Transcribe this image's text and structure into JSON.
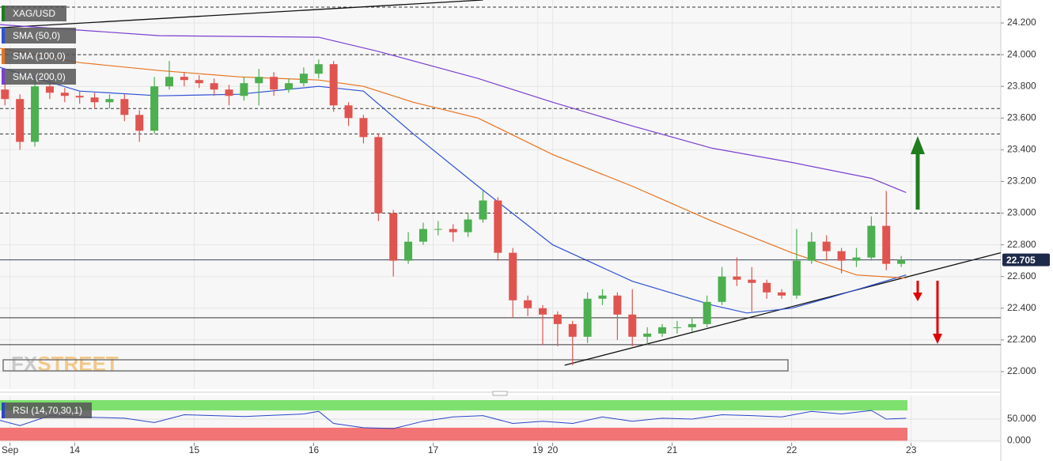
{
  "chart_data": {
    "type": "candlestick",
    "symbol": "XAG/USD",
    "watermark": [
      "FX",
      "STREET"
    ],
    "x": [
      -14,
      -11,
      -8,
      -5,
      -2,
      1,
      4,
      7,
      10,
      13,
      16,
      19,
      22,
      25,
      28,
      31,
      34,
      37,
      40,
      43,
      46,
      49,
      52,
      55,
      58,
      61,
      64,
      67,
      70,
      73,
      76,
      79,
      82,
      85,
      88,
      91,
      94,
      97,
      100,
      103,
      106,
      109,
      112,
      115,
      118,
      121,
      124,
      127,
      130,
      133,
      136,
      139,
      142,
      145,
      148,
      151,
      154,
      157,
      160,
      163,
      166
    ],
    "open": [
      23.78,
      23.72,
      23.45,
      23.8,
      23.76,
      23.74,
      23.73,
      23.7,
      23.72,
      23.62,
      23.52,
      23.8,
      23.86,
      23.84,
      23.82,
      23.78,
      23.74,
      23.82,
      23.86,
      23.78,
      23.82,
      23.88,
      23.94,
      23.68,
      23.6,
      23.48,
      23.0,
      22.7,
      22.82,
      22.9,
      22.9,
      22.88,
      22.96,
      23.08,
      22.75,
      22.45,
      22.4,
      22.36,
      22.3,
      22.22,
      22.46,
      22.48,
      22.36,
      22.22,
      22.24,
      22.28,
      22.28,
      22.3,
      22.44,
      22.6,
      22.58,
      22.56,
      22.5,
      22.48,
      22.7,
      22.82,
      22.76,
      22.7,
      22.72,
      22.92,
      22.68
    ],
    "high": [
      23.82,
      23.75,
      23.84,
      23.84,
      23.79,
      23.77,
      23.76,
      23.75,
      23.75,
      23.65,
      23.86,
      23.96,
      23.89,
      23.87,
      23.85,
      23.81,
      23.86,
      23.91,
      23.89,
      23.85,
      23.92,
      23.97,
      23.96,
      23.7,
      23.62,
      23.5,
      23.02,
      22.88,
      22.94,
      22.95,
      22.93,
      23.0,
      23.14,
      23.1,
      22.78,
      22.48,
      22.42,
      22.38,
      22.32,
      22.5,
      22.52,
      22.5,
      22.52,
      22.28,
      22.3,
      22.32,
      22.34,
      22.48,
      22.66,
      22.72,
      22.66,
      22.58,
      22.52,
      22.9,
      22.88,
      22.86,
      22.78,
      22.78,
      22.98,
      23.14,
      22.73
    ],
    "low": [
      23.68,
      23.4,
      23.42,
      23.72,
      23.7,
      23.69,
      23.66,
      23.66,
      23.58,
      23.45,
      23.5,
      23.78,
      23.8,
      23.79,
      23.74,
      23.68,
      23.71,
      23.68,
      23.74,
      23.76,
      23.8,
      23.85,
      23.64,
      23.55,
      23.44,
      22.95,
      22.6,
      22.68,
      22.8,
      22.86,
      22.82,
      22.85,
      22.94,
      22.7,
      22.34,
      22.35,
      22.17,
      22.16,
      22.04,
      22.18,
      22.42,
      22.2,
      22.16,
      22.17,
      22.22,
      22.24,
      22.25,
      22.28,
      22.42,
      22.54,
      22.38,
      22.46,
      22.46,
      22.46,
      22.68,
      22.7,
      22.62,
      22.66,
      22.7,
      22.64,
      22.66
    ],
    "close": [
      23.72,
      23.45,
      23.8,
      23.76,
      23.74,
      23.73,
      23.7,
      23.72,
      23.62,
      23.52,
      23.8,
      23.86,
      23.84,
      23.82,
      23.78,
      23.74,
      23.82,
      23.86,
      23.78,
      23.82,
      23.88,
      23.94,
      23.68,
      23.6,
      23.48,
      23.0,
      22.7,
      22.82,
      22.9,
      22.9,
      22.88,
      22.96,
      23.08,
      22.75,
      22.45,
      22.4,
      22.36,
      22.3,
      22.22,
      22.46,
      22.48,
      22.36,
      22.22,
      22.24,
      22.28,
      22.28,
      22.3,
      22.44,
      22.6,
      22.58,
      22.56,
      22.5,
      22.48,
      22.7,
      22.82,
      22.76,
      22.7,
      22.72,
      22.92,
      22.68,
      22.705
    ],
    "up_color": "#4caf50",
    "down_color": "#e0544f",
    "xlim": [
      -15,
      186
    ],
    "xticks": [
      {
        "value": -13,
        "label": "Sep"
      },
      {
        "value": 0,
        "label": "14"
      },
      {
        "value": 24,
        "label": "15"
      },
      {
        "value": 48,
        "label": "16"
      },
      {
        "value": 72,
        "label": "17"
      },
      {
        "value": 93,
        "label": "19"
      },
      {
        "value": 96,
        "label": "20"
      },
      {
        "value": 120,
        "label": "21"
      },
      {
        "value": 144,
        "label": "22"
      },
      {
        "value": 168,
        "label": "23"
      }
    ],
    "ylim": [
      21.89,
      24.345
    ],
    "yticks": [
      {
        "value": 22,
        "label": "22.000"
      },
      {
        "value": 22.2,
        "label": "22.200"
      },
      {
        "value": 22.4,
        "label": "22.400"
      },
      {
        "value": 22.6,
        "label": "22.600"
      },
      {
        "value": 22.8,
        "label": "22.800"
      },
      {
        "value": 23,
        "label": "23.000"
      },
      {
        "value": 23.2,
        "label": "23.200"
      },
      {
        "value": 23.4,
        "label": "23.400"
      },
      {
        "value": 23.6,
        "label": "23.600"
      },
      {
        "value": 23.8,
        "label": "23.800"
      },
      {
        "value": 24,
        "label": "24.000"
      },
      {
        "value": 24.2,
        "label": "24.200"
      }
    ],
    "grid": true,
    "last_price": 22.705,
    "lines": [
      {
        "name": "SMA (50,0)",
        "color": "#2f52d6",
        "x": [
          -15,
          1,
          17,
          33,
          49,
          58,
          68,
          81,
          96,
          112,
          128,
          135,
          144,
          152,
          167
        ],
        "values": [
          23.92,
          23.77,
          23.74,
          23.75,
          23.8,
          23.77,
          23.5,
          23.17,
          22.8,
          22.57,
          22.42,
          22.37,
          22.4,
          22.47,
          22.61
        ]
      },
      {
        "name": "SMA (100,0)",
        "color": "#e8731f",
        "x": [
          -15,
          1,
          17,
          33,
          49,
          58,
          68,
          81,
          96,
          112,
          128,
          144,
          157,
          167
        ],
        "values": [
          24.04,
          23.95,
          23.9,
          23.86,
          23.84,
          23.8,
          23.7,
          23.6,
          23.37,
          23.17,
          22.95,
          22.75,
          22.61,
          22.59
        ]
      },
      {
        "name": "SMA (200,0)",
        "color": "#7b3fd0",
        "x": [
          -15,
          17,
          49,
          61,
          81,
          96,
          112,
          128,
          144,
          160,
          167
        ],
        "values": [
          24.19,
          24.12,
          24.11,
          24.02,
          23.85,
          23.7,
          23.55,
          23.41,
          23.32,
          23.22,
          23.13
        ]
      }
    ],
    "levels": [
      {
        "value": 24.3,
        "style": "dashed"
      },
      {
        "value": 24.0,
        "style": "dashed"
      },
      {
        "value": 23.66,
        "style": "dashed"
      },
      {
        "value": 23.5,
        "style": "dashed"
      },
      {
        "value": 23.0,
        "style": "dashed"
      },
      {
        "value": 22.34,
        "style": "solid"
      },
      {
        "value": 22.17,
        "style": "solid"
      }
    ],
    "trendlines": [
      {
        "x": [
          -15,
          82
        ],
        "values": [
          24.17,
          24.345
        ]
      },
      {
        "x": [
          98.4,
          186
        ],
        "values": [
          22.04,
          22.75
        ]
      }
    ],
    "rsi": {
      "name": "RSI (14,70,30,1)",
      "color": "#2a45c8",
      "x": [
        -15,
        -11,
        -5,
        1,
        10,
        16,
        22,
        34,
        46,
        49,
        52,
        58,
        64,
        70,
        76,
        82,
        88,
        94,
        100,
        106,
        112,
        118,
        124,
        130,
        136,
        142,
        148,
        154,
        160,
        163,
        167
      ],
      "values": [
        47,
        35,
        58,
        55,
        52,
        42,
        60,
        56,
        62,
        68,
        40,
        30,
        28,
        45,
        55,
        58,
        40,
        45,
        40,
        55,
        45,
        52,
        50,
        60,
        58,
        55,
        68,
        62,
        70,
        50,
        52
      ],
      "ylim": [
        -5,
        105
      ],
      "yticks": [
        {
          "value": 0,
          "label": "0.000"
        },
        {
          "value": 50,
          "label": "50.000"
        }
      ],
      "overbought": 70,
      "oversold": 30
    }
  }
}
